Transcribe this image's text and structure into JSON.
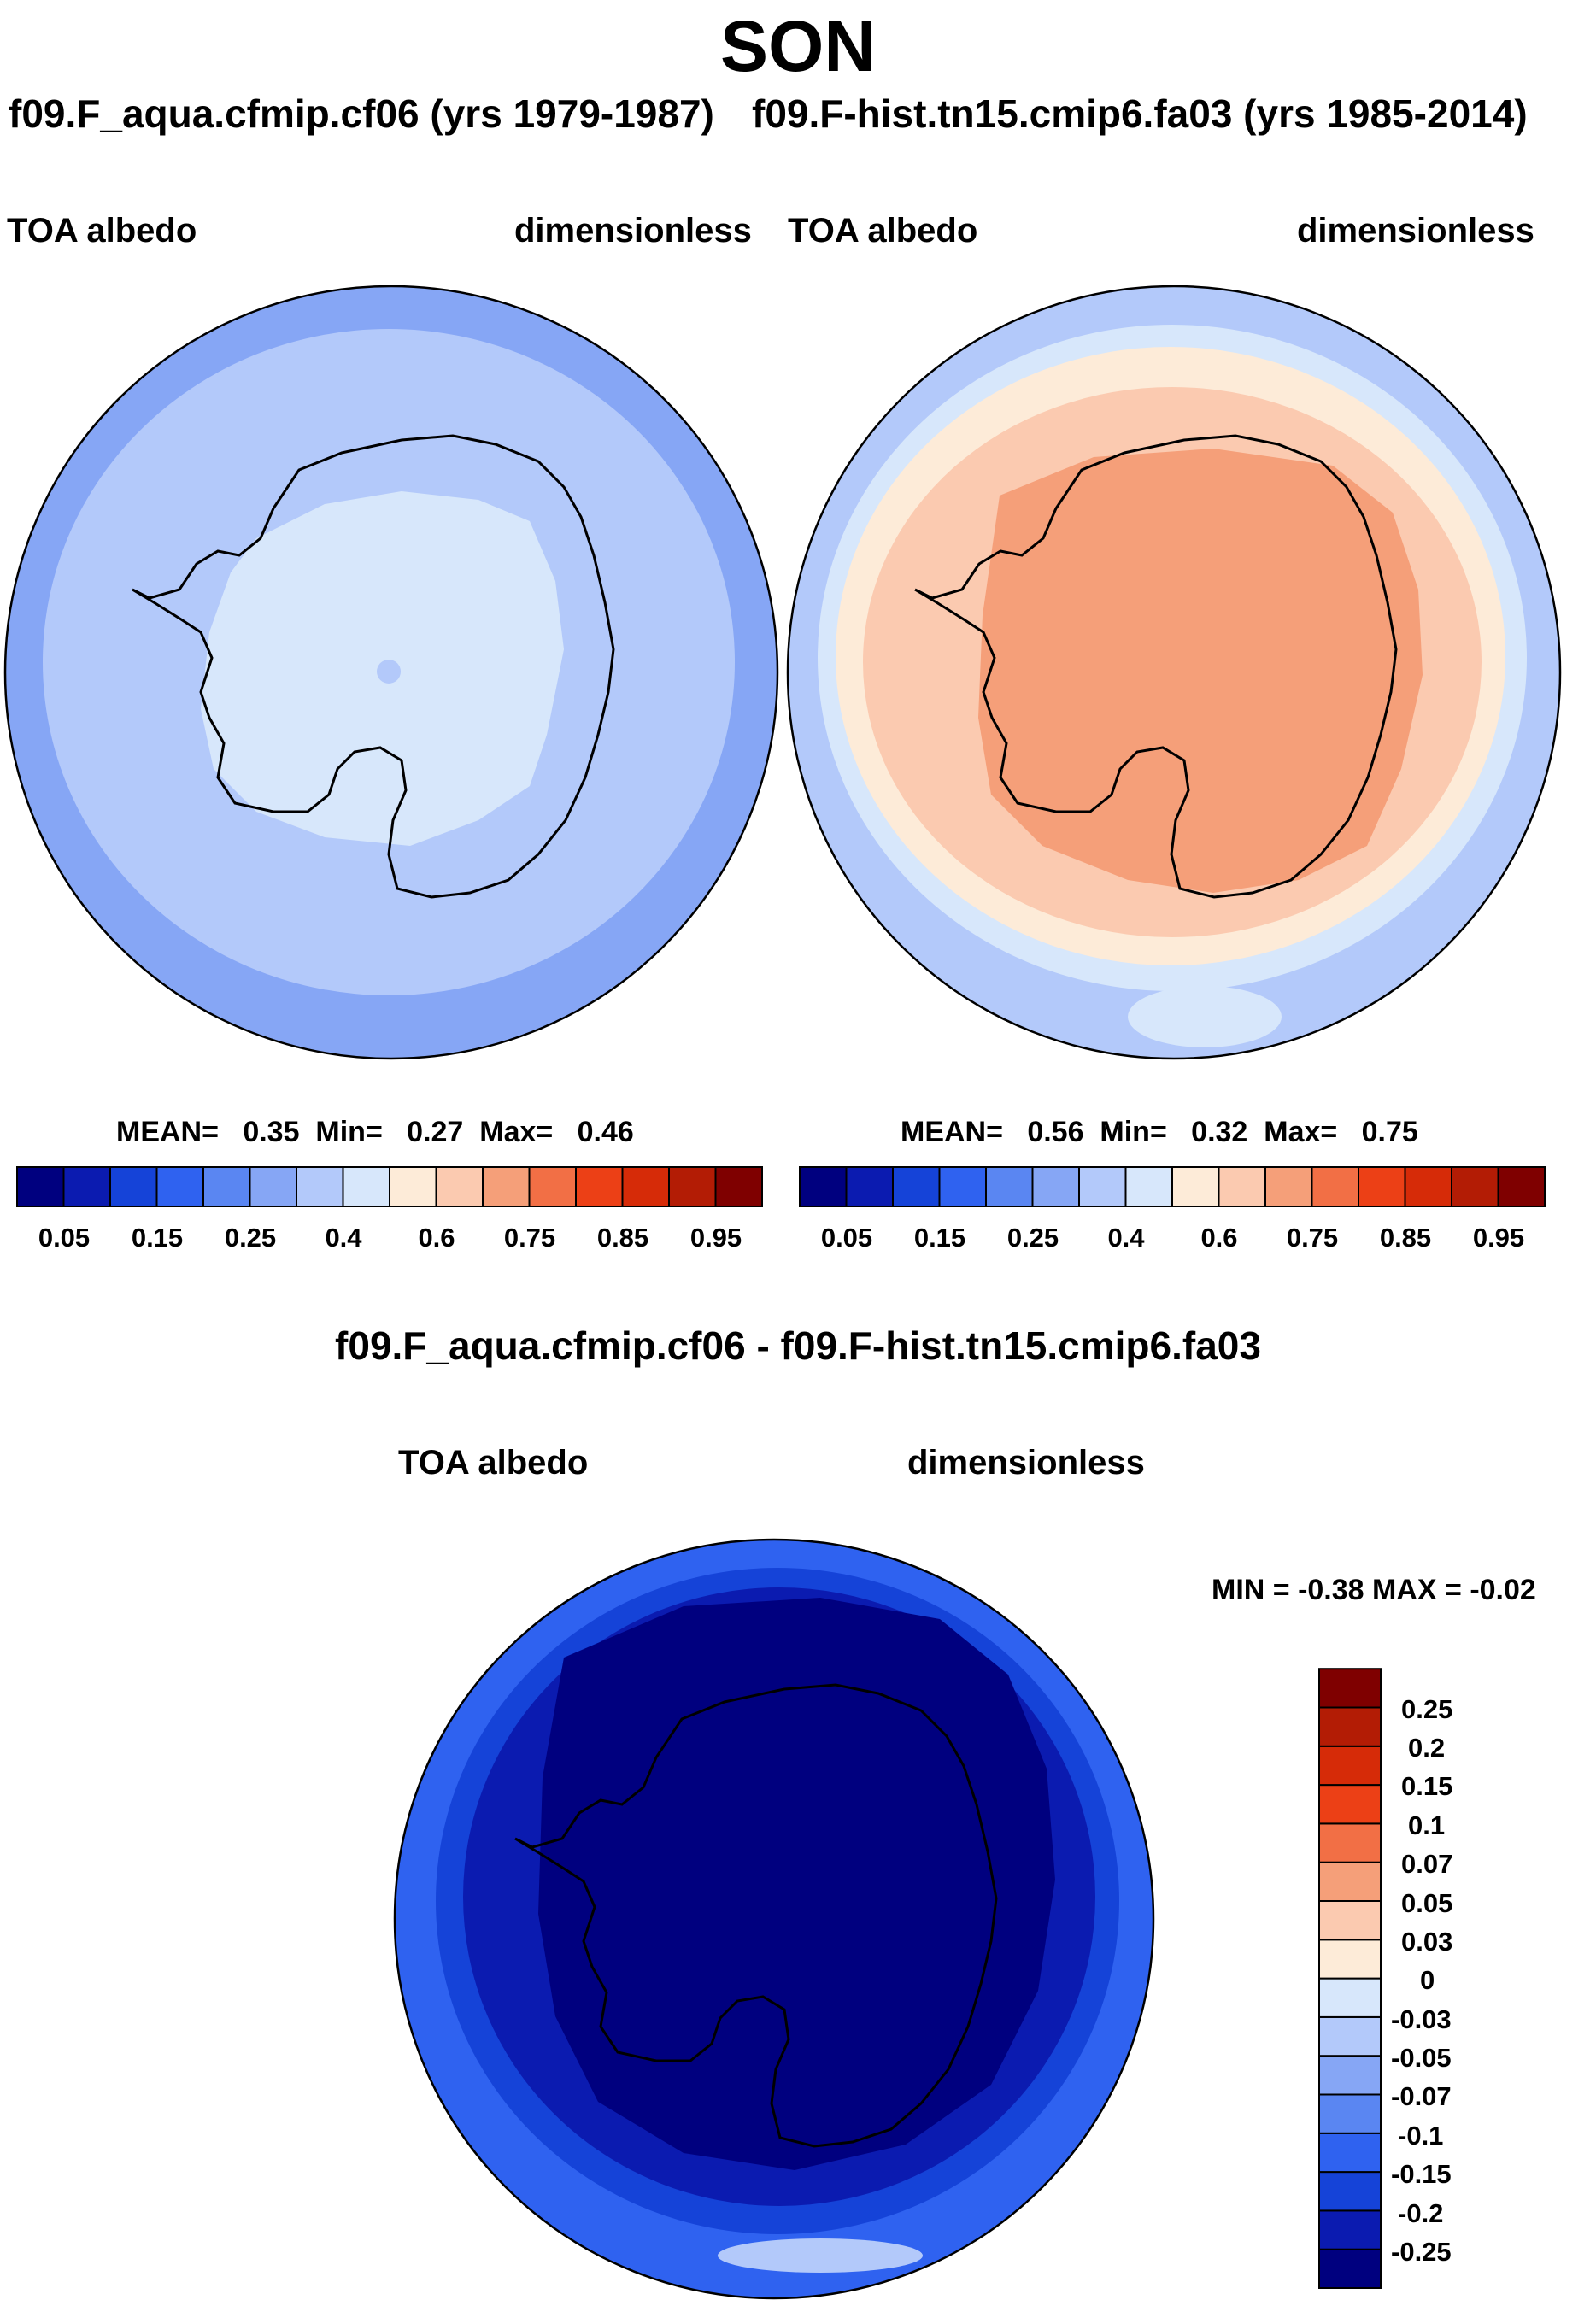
{
  "title": "SON",
  "panels": {
    "left": {
      "case_title": "f09.F_aqua.cfmip.cf06 (yrs 1979-1987)",
      "variable": "TOA albedo",
      "units": "dimensionless",
      "stats": {
        "mean_label": "MEAN=",
        "mean": "0.35",
        "min_label": "Min=",
        "min": "0.27",
        "max_label": "Max=",
        "max": "0.46"
      }
    },
    "right": {
      "case_title": "f09.F-hist.tn15.cmip6.fa03 (yrs 1985-2014)",
      "variable": "TOA albedo",
      "units": "dimensionless",
      "stats": {
        "mean_label": "MEAN=",
        "mean": "0.56",
        "min_label": "Min=",
        "min": "0.32",
        "max_label": "Max=",
        "max": "0.75"
      }
    },
    "diff": {
      "case_title": "f09.F_aqua.cfmip.cf06 - f09.F-hist.tn15.cmip6.fa03",
      "variable": "TOA albedo",
      "units": "dimensionless",
      "stats": "MIN =  -0.38 MAX =  -0.02"
    }
  },
  "colorbar_main": {
    "colors": [
      "#00007f",
      "#0b1bb0",
      "#1543d8",
      "#2f62f0",
      "#5a86f2",
      "#86a6f5",
      "#b3c9fa",
      "#d7e7fb",
      "#fdebd8",
      "#fbcab0",
      "#f59f79",
      "#f26f45",
      "#ec4016",
      "#d62b08",
      "#b31c05",
      "#7f0000"
    ],
    "labels": [
      "0.05",
      "0.15",
      "0.25",
      "0.4",
      "0.6",
      "0.75",
      "0.85",
      "0.95"
    ]
  },
  "colorbar_diff": {
    "colors": [
      "#00007f",
      "#0b1bb0",
      "#1543d8",
      "#2f62f0",
      "#5a86f2",
      "#86a6f5",
      "#b3c9fa",
      "#d7e7fb",
      "#fdebd8",
      "#fbcab0",
      "#f59f79",
      "#f26f45",
      "#ec4016",
      "#d62b08",
      "#b31c05",
      "#7f0000"
    ],
    "labels": [
      "-0.25",
      "-0.2",
      "-0.15",
      "-0.1",
      "-0.07",
      "-0.05",
      "-0.03",
      "0",
      "0.03",
      "0.05",
      "0.07",
      "0.1",
      "0.15",
      "0.2",
      "0.25"
    ]
  },
  "map_colors": {
    "left": [
      "#86a6f5",
      "#b3c9fa",
      "#d7e7fb"
    ],
    "right": [
      "#b3c9fa",
      "#d7e7fb",
      "#fdebd8",
      "#fbcab0",
      "#f59f79"
    ],
    "diff": [
      "#2f62f0",
      "#1543d8",
      "#0b1bb0",
      "#00007f"
    ]
  }
}
